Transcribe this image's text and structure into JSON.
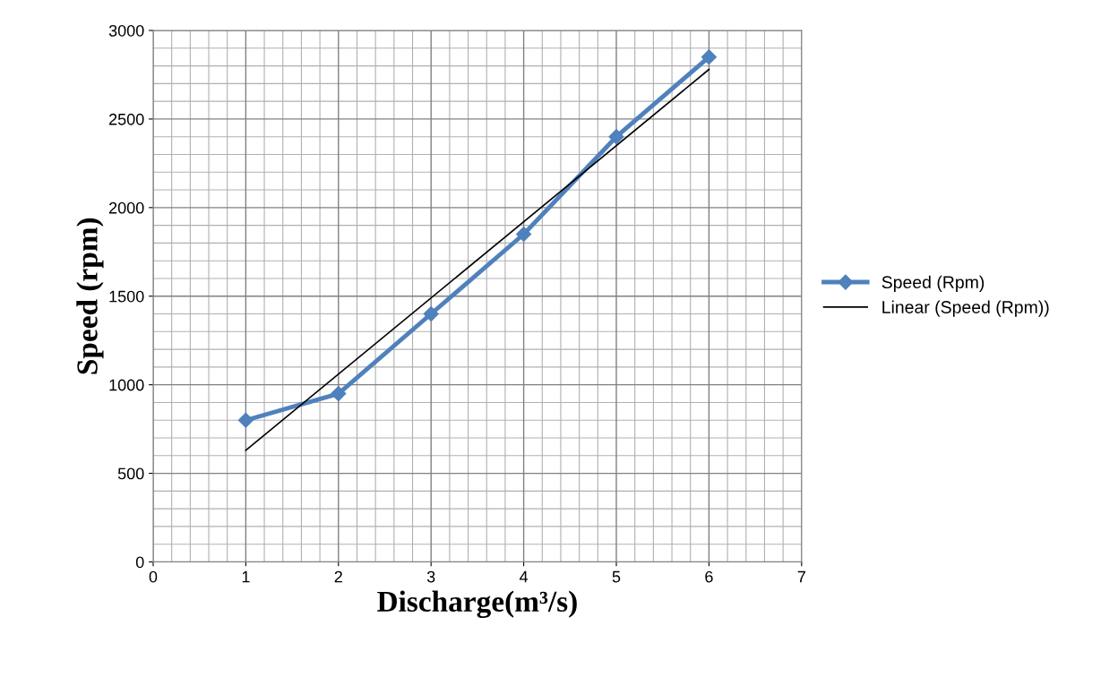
{
  "chart_data": {
    "type": "line",
    "xlabel": "Discharge(m³/s)",
    "ylabel": "Speed (rpm)",
    "x": [
      1,
      2,
      3,
      4,
      5,
      6
    ],
    "series": [
      {
        "name": "Speed (Rpm)",
        "color": "#4f81bd",
        "values": [
          800,
          950,
          1400,
          1850,
          2400,
          2850
        ],
        "marker": "diamond"
      },
      {
        "name": "Linear (Speed (Rpm))",
        "color": "#000000",
        "type": "line",
        "x": [
          1,
          6
        ],
        "values": [
          630,
          2780
        ],
        "marker": "none"
      }
    ],
    "xlim": [
      0,
      7
    ],
    "xticks": [
      0,
      1,
      2,
      3,
      4,
      5,
      6,
      7
    ],
    "ylim": [
      0,
      3000
    ],
    "yticks": [
      0,
      500,
      1000,
      1500,
      2000,
      2500,
      3000
    ],
    "grid": true,
    "legend": "right",
    "line_style": "solid"
  }
}
